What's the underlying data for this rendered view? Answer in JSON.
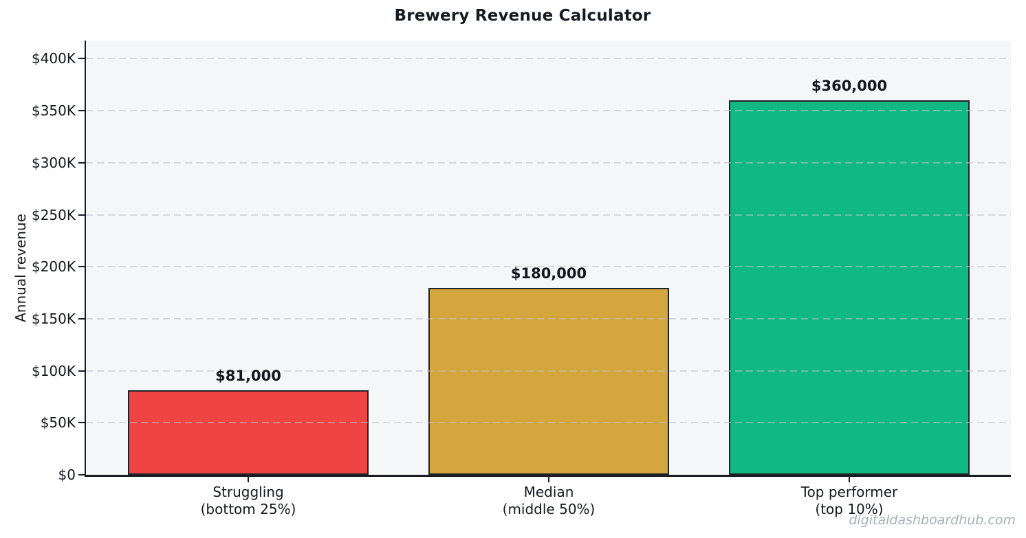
{
  "figure": {
    "title": "Brewery Revenue Calculator",
    "watermark": "digitaldashboardhub.com"
  },
  "chart_data": {
    "type": "bar",
    "title": "Brewery Revenue Calculator",
    "xlabel": "",
    "ylabel": "Annual revenue",
    "categories": [
      "Struggling\n(bottom 25%)",
      "Median\n(middle 50%)",
      "Top performer\n(top 10%)"
    ],
    "values": [
      81000,
      180000,
      360000
    ],
    "bar_labels": [
      "$81,000",
      "$180,000",
      "$360,000"
    ],
    "bar_names": [
      "struggling",
      "median",
      "top-performer"
    ],
    "bar_colors": [
      "#ee4444",
      "#d4a73e",
      "#10b981"
    ],
    "bar_edge_color": "#20222b",
    "ytick_values": [
      0,
      50000,
      100000,
      150000,
      200000,
      250000,
      300000,
      350000,
      400000
    ],
    "ytick_labels": [
      "$0",
      "$50K",
      "$100K",
      "$150K",
      "$200K",
      "$250K",
      "$300K",
      "$350K",
      "$400K"
    ],
    "ylim": [
      0,
      417500
    ],
    "grid": {
      "axis": "y",
      "style": "dashed",
      "color": "#d9dade",
      "drawn_over_bars": true
    },
    "legend": "none",
    "plot_background": "#f5f6f8",
    "figure_background": "#ffffff"
  }
}
